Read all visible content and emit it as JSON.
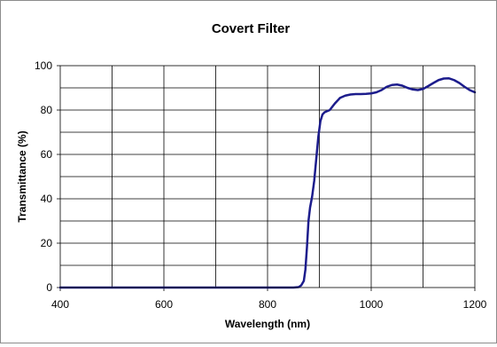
{
  "chart_data": {
    "type": "line",
    "title": "Covert Filter",
    "xlabel": "Wavelength (nm)",
    "ylabel": "Transmittance (%)",
    "xlim": [
      400,
      1200
    ],
    "ylim": [
      0,
      100
    ],
    "xticks": [
      400,
      600,
      800,
      1000,
      1200
    ],
    "yticks": [
      0,
      20,
      40,
      60,
      80,
      100
    ],
    "grid": true,
    "legend": "none",
    "series": [
      {
        "color": "#1c1c8c",
        "x": [
          400,
          500,
          600,
          700,
          800,
          850,
          860,
          865,
          870,
          873,
          876,
          879,
          882,
          886,
          890,
          894,
          898,
          902,
          906,
          910,
          915,
          920,
          930,
          940,
          950,
          960,
          970,
          980,
          990,
          1000,
          1010,
          1020,
          1030,
          1040,
          1050,
          1060,
          1070,
          1080,
          1090,
          1100,
          1110,
          1120,
          1130,
          1140,
          1150,
          1160,
          1170,
          1180,
          1190,
          1200
        ],
        "y": [
          0,
          0,
          0,
          0,
          0,
          0,
          0.2,
          1,
          3,
          8,
          18,
          30,
          36,
          41,
          48,
          58,
          68,
          75,
          78,
          79,
          79.5,
          80,
          83,
          85.5,
          86.5,
          87,
          87.2,
          87.2,
          87.3,
          87.5,
          88,
          89,
          90.5,
          91.3,
          91.5,
          91,
          90,
          89.3,
          89,
          89.5,
          90.8,
          92.2,
          93.5,
          94.2,
          94.3,
          93.5,
          92.2,
          90.5,
          89,
          88
        ]
      }
    ]
  }
}
